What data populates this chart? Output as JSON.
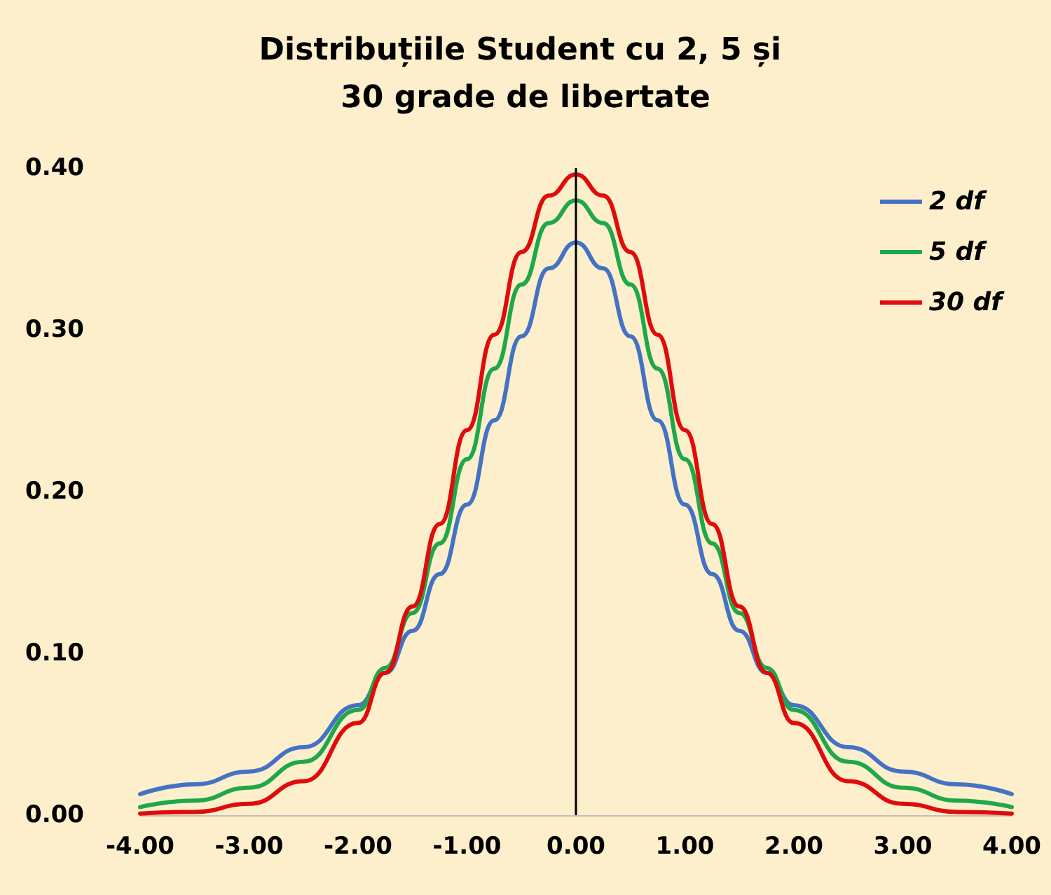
{
  "chart_data": {
    "type": "line",
    "title": "Distribuțiile Student cu 2, 5 și 30 grade de libertate",
    "x": [
      -4,
      -3.5,
      -3,
      -2.5,
      -2,
      -1.75,
      -1.5,
      -1.25,
      -1,
      -0.75,
      -0.5,
      -0.25,
      0,
      0.25,
      0.5,
      0.75,
      1,
      1.25,
      1.5,
      1.75,
      2,
      2.5,
      3,
      3.5,
      4
    ],
    "series": [
      {
        "name": "2 df",
        "color": "#4472c4",
        "values": [
          0.013,
          0.019,
          0.027,
          0.042,
          0.068,
          0.088,
          0.114,
          0.149,
          0.192,
          0.244,
          0.296,
          0.338,
          0.354,
          0.338,
          0.296,
          0.244,
          0.192,
          0.149,
          0.114,
          0.088,
          0.068,
          0.042,
          0.027,
          0.019,
          0.013
        ]
      },
      {
        "name": "5 df",
        "color": "#1fa84a",
        "values": [
          0.005,
          0.009,
          0.017,
          0.033,
          0.065,
          0.091,
          0.125,
          0.168,
          0.22,
          0.276,
          0.328,
          0.366,
          0.38,
          0.366,
          0.328,
          0.276,
          0.22,
          0.168,
          0.125,
          0.091,
          0.065,
          0.033,
          0.017,
          0.009,
          0.005
        ]
      },
      {
        "name": "30 df",
        "color": "#e00b0b",
        "values": [
          0.001,
          0.002,
          0.007,
          0.021,
          0.057,
          0.088,
          0.129,
          0.18,
          0.238,
          0.297,
          0.348,
          0.383,
          0.396,
          0.383,
          0.348,
          0.297,
          0.238,
          0.18,
          0.129,
          0.088,
          0.057,
          0.021,
          0.007,
          0.002,
          0.001
        ]
      }
    ],
    "xlim": [
      -4,
      4
    ],
    "xticks": [
      {
        "value": -4,
        "label": "-4.00"
      },
      {
        "value": -3,
        "label": "-3.00"
      },
      {
        "value": -2,
        "label": "-2.00"
      },
      {
        "value": -1,
        "label": "-1.00"
      },
      {
        "value": 0,
        "label": "0.00"
      },
      {
        "value": 1,
        "label": "1.00"
      },
      {
        "value": 2,
        "label": "2.00"
      },
      {
        "value": 3,
        "label": "3.00"
      },
      {
        "value": 4,
        "label": "4.00"
      }
    ],
    "ylim": [
      0,
      0.4
    ],
    "yticks": [
      {
        "value": 0,
        "label": "0.00"
      },
      {
        "value": 0.1,
        "label": "0.10"
      },
      {
        "value": 0.2,
        "label": "0.20"
      },
      {
        "value": 0.3,
        "label": "0.30"
      },
      {
        "value": 0.4,
        "label": "0.40"
      }
    ],
    "ref_lines": [
      {
        "axis": "x",
        "value": 0,
        "color": "#000000"
      }
    ],
    "grid": false,
    "legend": "top right",
    "marker": "none",
    "line_style": "solid"
  }
}
